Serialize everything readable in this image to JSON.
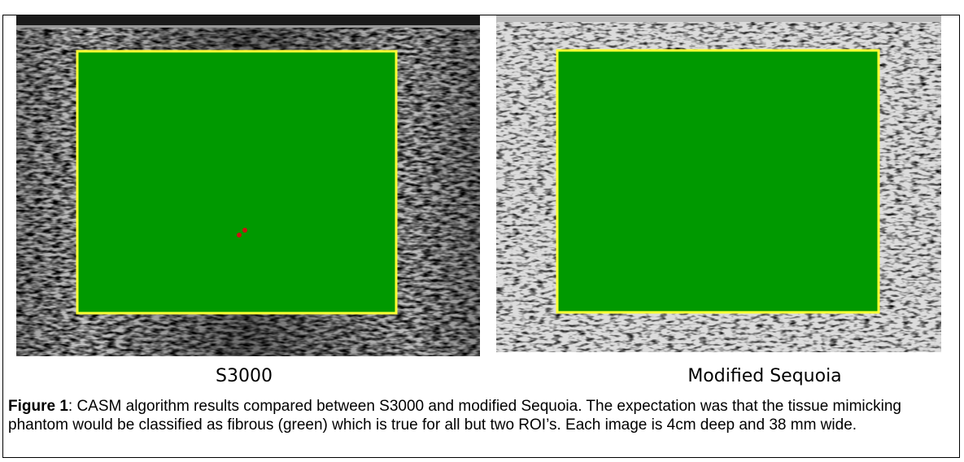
{
  "figure": {
    "images": [
      {
        "label": "S3000"
      },
      {
        "label": "Modified Sequoia"
      }
    ],
    "caption": {
      "label": "Figure 1",
      "text": ":  CASM algorithm results compared between S3000 and modified Sequoia. The expectation was that the tissue mimicking phantom would be classified as fibrous (green) which is true for all but two ROI’s. Each image is 4cm deep and 38 mm wide."
    }
  }
}
